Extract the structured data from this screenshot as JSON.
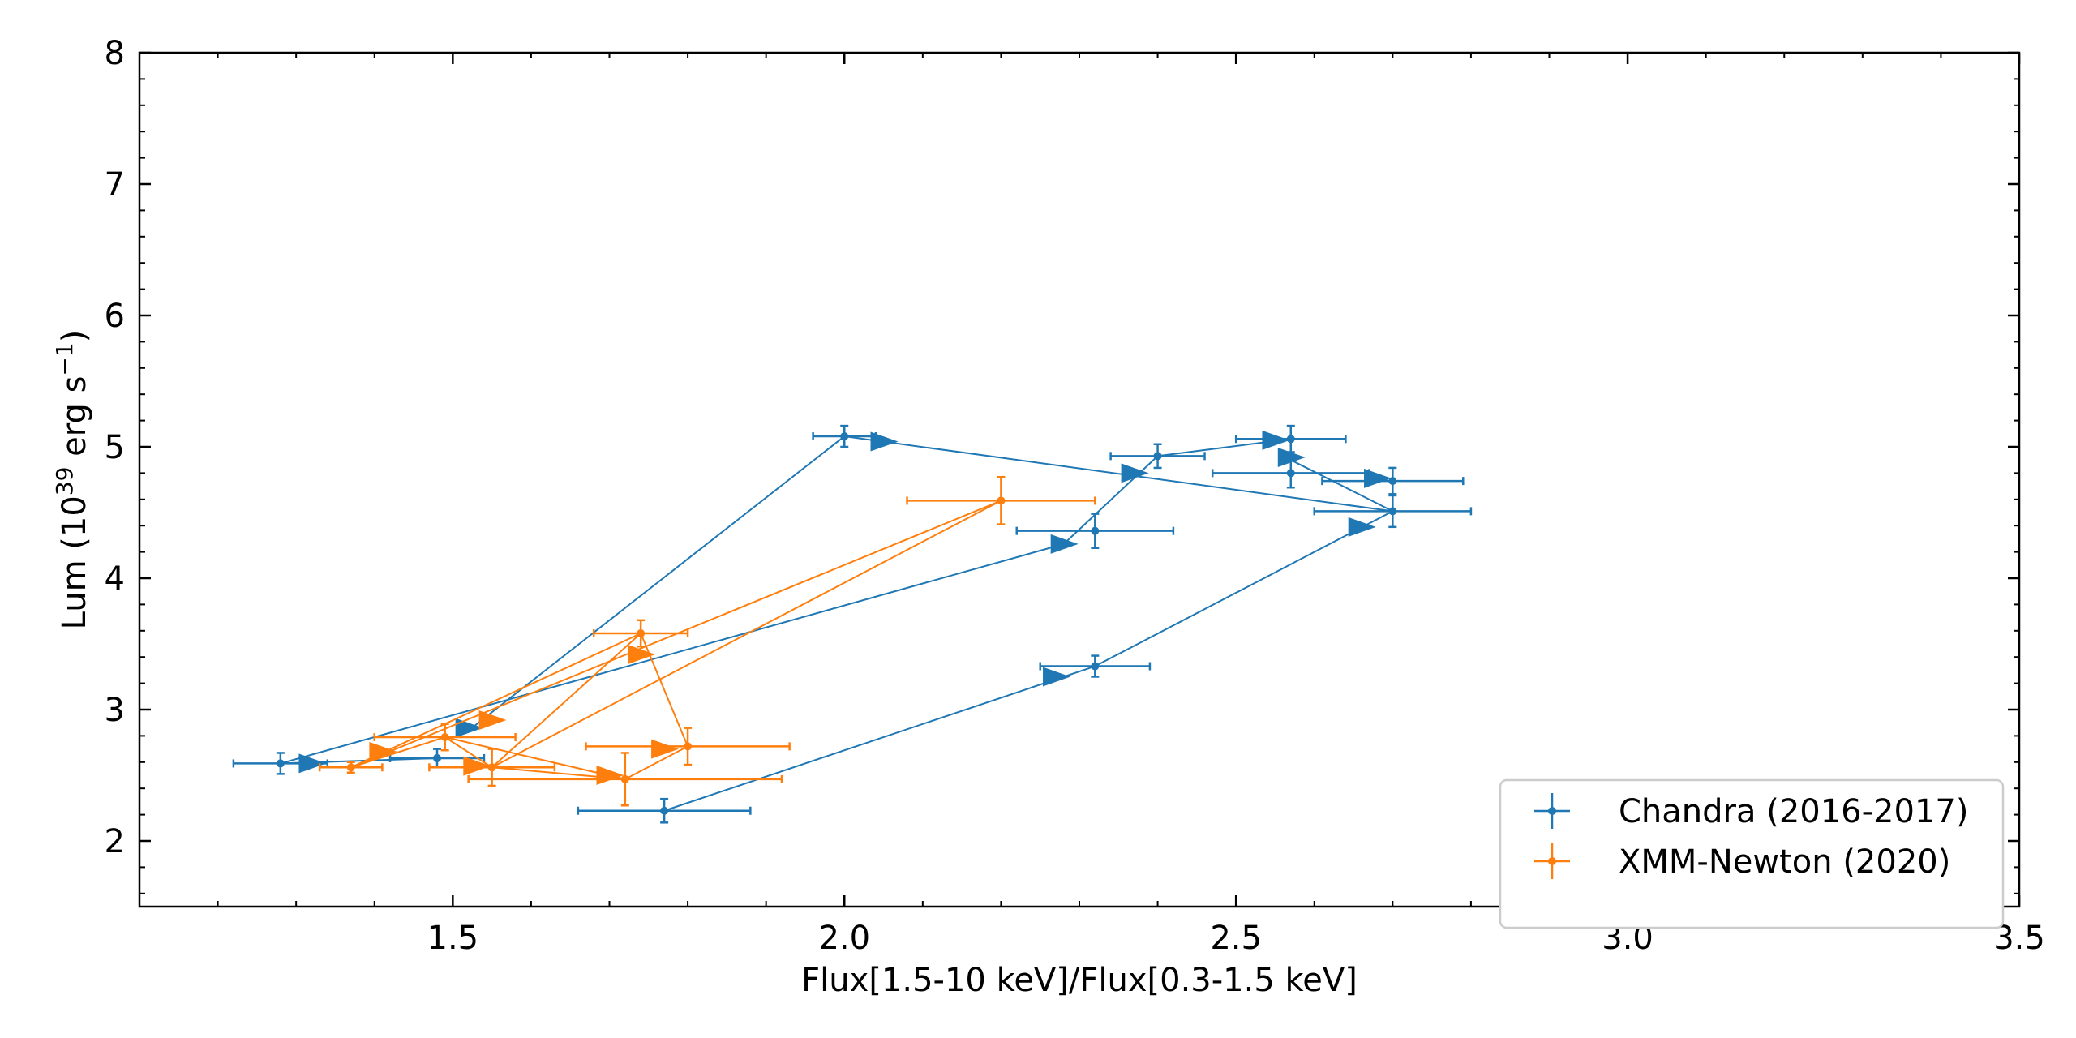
{
  "chart_data": {
    "type": "scatter",
    "xlabel": "Flux[1.5-10 keV]/Flux[0.3-1.5 keV]",
    "ylabel_main": "Lum (10",
    "ylabel_sup": "39",
    "ylabel_mid": " erg s",
    "ylabel_sup2": "−1",
    "ylabel_end": ")",
    "xlim": [
      1.1,
      3.5
    ],
    "ylim": [
      1.5,
      8
    ],
    "xticks": [
      1.5,
      2.0,
      2.5,
      3.0,
      3.5
    ],
    "xtick_labels": [
      "1.5",
      "2.0",
      "2.5",
      "3.0",
      "3.5"
    ],
    "yticks": [
      2,
      3,
      4,
      5,
      6,
      7,
      8
    ],
    "ytick_labels": [
      "2",
      "3",
      "4",
      "5",
      "6",
      "7",
      "8"
    ],
    "legend_position": "lower-right",
    "series": [
      {
        "name": "Chandra (2016-2017)",
        "color": "#1f77b4",
        "points": [
          {
            "x": 1.28,
            "y": 2.59,
            "xerr": 0.06,
            "yerr": 0.08
          },
          {
            "x": 1.48,
            "y": 2.63,
            "xerr": 0.06,
            "yerr": 0.07
          },
          {
            "x": 2.0,
            "y": 5.08,
            "xerr": 0.04,
            "yerr": 0.08
          },
          {
            "x": 2.57,
            "y": 5.06,
            "xerr": 0.07,
            "yerr": 0.1
          },
          {
            "x": 2.7,
            "y": 4.51,
            "xerr": 0.1,
            "yerr": 0.12
          },
          {
            "x": 2.32,
            "y": 3.33,
            "xerr": 0.07,
            "yerr": 0.08
          },
          {
            "x": 1.77,
            "y": 2.23,
            "xerr": 0.11,
            "yerr": 0.09
          },
          {
            "x": 2.32,
            "y": 4.36,
            "xerr": 0.1,
            "yerr": 0.13
          },
          {
            "x": 2.4,
            "y": 4.93,
            "xerr": 0.06,
            "yerr": 0.09
          },
          {
            "x": 2.57,
            "y": 4.8,
            "xerr": 0.1,
            "yerr": 0.11
          },
          {
            "x": 2.7,
            "y": 4.74,
            "xerr": 0.09,
            "yerr": 0.1
          }
        ],
        "arrow_path": [
          [
            1.48,
            2.63
          ],
          [
            1.28,
            2.59
          ],
          [
            2.28,
            4.26
          ],
          [
            2.4,
            4.93
          ],
          [
            2.57,
            5.06
          ],
          [
            2.57,
            4.9
          ],
          [
            2.7,
            4.51
          ],
          [
            2.0,
            5.08
          ],
          [
            1.52,
            2.84
          ]
        ],
        "arrows": [
          [
            1.32,
            2.59
          ],
          [
            2.28,
            4.26
          ],
          [
            2.37,
            4.8
          ],
          [
            2.55,
            5.05
          ],
          [
            2.57,
            4.92
          ],
          [
            2.68,
            4.76
          ],
          [
            2.05,
            5.04
          ],
          [
            1.52,
            2.86
          ],
          [
            2.27,
            3.25
          ],
          [
            2.66,
            4.39
          ]
        ]
      },
      {
        "name": "XMM-Newton (2020)",
        "color": "#ff7f0e",
        "points": [
          {
            "x": 1.37,
            "y": 2.56,
            "xerr": 0.04,
            "yerr": 0.04
          },
          {
            "x": 1.49,
            "y": 2.79,
            "xerr": 0.09,
            "yerr": 0.1
          },
          {
            "x": 1.55,
            "y": 2.56,
            "xerr": 0.08,
            "yerr": 0.14
          },
          {
            "x": 1.72,
            "y": 2.47,
            "xerr": 0.2,
            "yerr": 0.2
          },
          {
            "x": 1.8,
            "y": 2.72,
            "xerr": 0.13,
            "yerr": 0.14
          },
          {
            "x": 1.74,
            "y": 3.58,
            "xerr": 0.06,
            "yerr": 0.1
          },
          {
            "x": 2.2,
            "y": 4.59,
            "xerr": 0.12,
            "yerr": 0.18
          }
        ],
        "arrows": [
          [
            1.41,
            2.68
          ],
          [
            1.55,
            2.92
          ],
          [
            1.74,
            3.42
          ],
          [
            1.7,
            2.5
          ],
          [
            1.53,
            2.57
          ],
          [
            1.77,
            2.7
          ]
        ]
      }
    ]
  }
}
